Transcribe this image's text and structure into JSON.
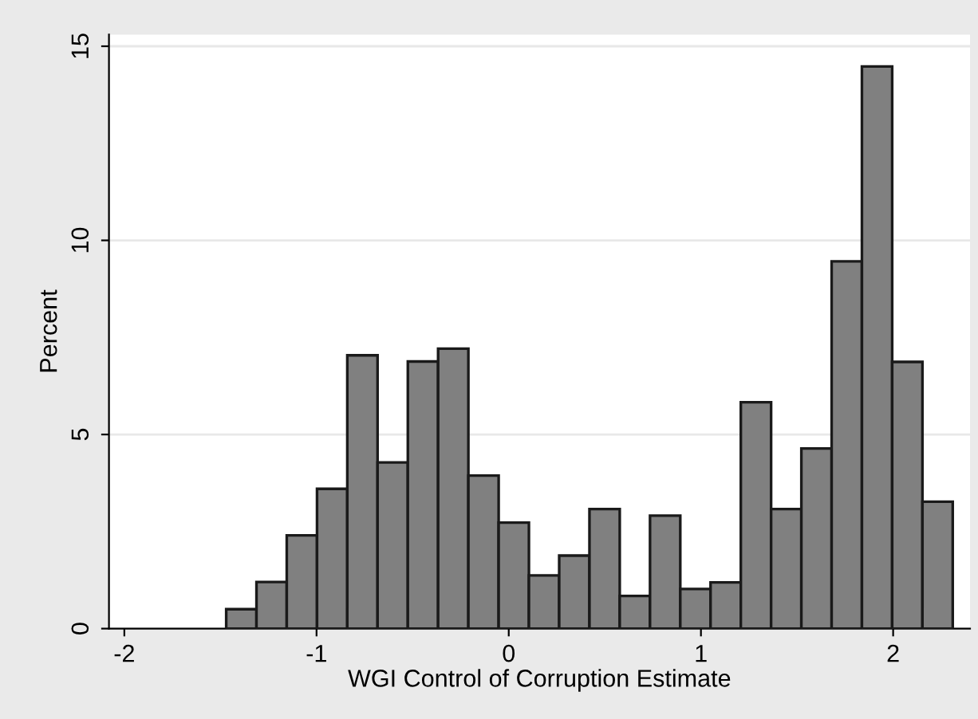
{
  "chart_data": {
    "type": "histogram",
    "xlabel": "WGI Control of Corruption Estimate",
    "ylabel": "Percent",
    "bins": [
      -1.47,
      -1.3125,
      -1.155,
      -0.9975,
      -0.84,
      -0.6825,
      -0.525,
      -0.3675,
      -0.21,
      -0.0525,
      0.105,
      0.2625,
      0.42,
      0.5775,
      0.735,
      0.8925,
      1.05,
      1.2075,
      1.365,
      1.5225,
      1.68,
      1.8375,
      1.995,
      2.1525,
      2.31
    ],
    "values": [
      0.5,
      1.2,
      2.4,
      3.6,
      7.04,
      4.28,
      6.88,
      7.21,
      3.94,
      2.73,
      1.37,
      1.88,
      3.08,
      0.84,
      2.91,
      1.02,
      1.19,
      5.83,
      3.08,
      4.64,
      9.46,
      14.48,
      6.87,
      3.27
    ],
    "color": "#808080",
    "xlim": [
      -2.08,
      2.4
    ],
    "ylim": [
      0,
      15.3
    ],
    "xticks": [
      -2,
      -1,
      0,
      1,
      2
    ],
    "yticks": [
      0,
      5,
      10,
      15
    ],
    "grid": "y"
  }
}
